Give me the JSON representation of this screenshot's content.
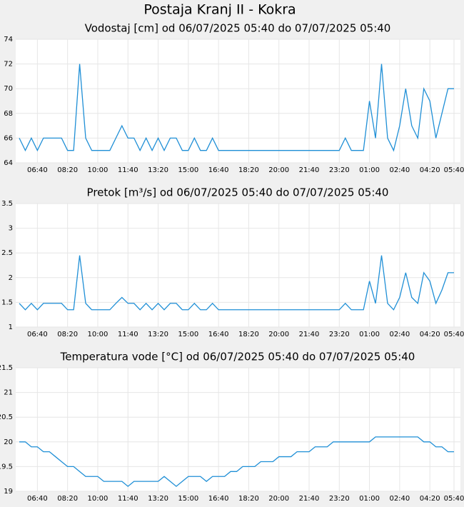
{
  "title": "Postaja Kranj II - Kokra",
  "chart_data": [
    {
      "type": "line",
      "title": "Vodostaj [cm] od 06/07/2025 05:40 do 07/07/2025 05:40",
      "x": [
        "05:40",
        "06:00",
        "06:20",
        "06:40",
        "07:00",
        "07:20",
        "07:40",
        "08:00",
        "08:20",
        "08:40",
        "09:00",
        "09:20",
        "09:40",
        "10:00",
        "10:20",
        "10:40",
        "11:00",
        "11:20",
        "11:40",
        "12:00",
        "12:20",
        "12:40",
        "13:00",
        "13:20",
        "13:40",
        "14:00",
        "14:20",
        "14:40",
        "15:00",
        "15:20",
        "15:40",
        "16:00",
        "16:20",
        "16:40",
        "17:00",
        "17:20",
        "17:40",
        "18:00",
        "18:20",
        "18:40",
        "19:00",
        "19:20",
        "19:40",
        "20:00",
        "20:20",
        "20:40",
        "21:00",
        "21:20",
        "21:40",
        "22:00",
        "22:20",
        "22:40",
        "23:00",
        "23:20",
        "23:40",
        "00:00",
        "00:20",
        "00:40",
        "01:00",
        "01:20",
        "01:40",
        "02:00",
        "02:20",
        "02:40",
        "03:00",
        "03:20",
        "03:40",
        "04:00",
        "04:20",
        "04:40",
        "05:00",
        "05:20",
        "05:40"
      ],
      "xticks": [
        "06:40",
        "08:20",
        "10:00",
        "11:40",
        "13:20",
        "15:00",
        "16:40",
        "18:20",
        "20:00",
        "21:40",
        "23:20",
        "01:00",
        "02:40",
        "04:20",
        "05:40"
      ],
      "ylim": [
        64,
        74
      ],
      "yticks": [
        64,
        66,
        68,
        70,
        72,
        74
      ],
      "grid": true,
      "series": [
        {
          "color": "#1f8fd6",
          "values": [
            66,
            65,
            66,
            65,
            66,
            66,
            66,
            66,
            65,
            65,
            72,
            66,
            65,
            65,
            65,
            65,
            66,
            67,
            66,
            66,
            65,
            66,
            65,
            66,
            65,
            66,
            66,
            65,
            65,
            66,
            65,
            65,
            66,
            65,
            65,
            65,
            65,
            65,
            65,
            65,
            65,
            65,
            65,
            65,
            65,
            65,
            65,
            65,
            65,
            65,
            65,
            65,
            65,
            65,
            66,
            65,
            65,
            65,
            69,
            66,
            72,
            66,
            65,
            67,
            70,
            67,
            66,
            70,
            69,
            66,
            68,
            70,
            70
          ]
        }
      ]
    },
    {
      "type": "line",
      "title": "Pretok [m³/s] od 06/07/2025 05:40 do 07/07/2025 05:40",
      "x": [
        "05:40",
        "06:00",
        "06:20",
        "06:40",
        "07:00",
        "07:20",
        "07:40",
        "08:00",
        "08:20",
        "08:40",
        "09:00",
        "09:20",
        "09:40",
        "10:00",
        "10:20",
        "10:40",
        "11:00",
        "11:20",
        "11:40",
        "12:00",
        "12:20",
        "12:40",
        "13:00",
        "13:20",
        "13:40",
        "14:00",
        "14:20",
        "14:40",
        "15:00",
        "15:20",
        "15:40",
        "16:00",
        "16:20",
        "16:40",
        "17:00",
        "17:20",
        "17:40",
        "18:00",
        "18:20",
        "18:40",
        "19:00",
        "19:20",
        "19:40",
        "20:00",
        "20:20",
        "20:40",
        "21:00",
        "21:20",
        "21:40",
        "22:00",
        "22:20",
        "22:40",
        "23:00",
        "23:20",
        "23:40",
        "00:00",
        "00:20",
        "00:40",
        "01:00",
        "01:20",
        "01:40",
        "02:00",
        "02:20",
        "02:40",
        "03:00",
        "03:20",
        "03:40",
        "04:00",
        "04:20",
        "04:40",
        "05:00",
        "05:20",
        "05:40"
      ],
      "xticks": [
        "06:40",
        "08:20",
        "10:00",
        "11:40",
        "13:20",
        "15:00",
        "16:40",
        "18:20",
        "20:00",
        "21:40",
        "23:20",
        "01:00",
        "02:40",
        "04:20",
        "05:40"
      ],
      "ylim": [
        1,
        3.5
      ],
      "yticks": [
        1,
        1.5,
        2,
        2.5,
        3,
        3.5
      ],
      "grid": true,
      "series": [
        {
          "color": "#1f8fd6",
          "values": [
            1.48,
            1.35,
            1.48,
            1.35,
            1.48,
            1.48,
            1.48,
            1.48,
            1.35,
            1.35,
            2.45,
            1.48,
            1.35,
            1.35,
            1.35,
            1.35,
            1.48,
            1.6,
            1.48,
            1.48,
            1.35,
            1.48,
            1.35,
            1.48,
            1.35,
            1.48,
            1.48,
            1.35,
            1.35,
            1.48,
            1.35,
            1.35,
            1.48,
            1.35,
            1.35,
            1.35,
            1.35,
            1.35,
            1.35,
            1.35,
            1.35,
            1.35,
            1.35,
            1.35,
            1.35,
            1.35,
            1.35,
            1.35,
            1.35,
            1.35,
            1.35,
            1.35,
            1.35,
            1.35,
            1.48,
            1.35,
            1.35,
            1.35,
            1.93,
            1.48,
            2.45,
            1.48,
            1.35,
            1.6,
            2.1,
            1.6,
            1.48,
            2.1,
            1.93,
            1.48,
            1.75,
            2.1,
            2.1
          ]
        }
      ]
    },
    {
      "type": "line",
      "title": "Temperatura vode [°C] od 06/07/2025 05:40 do 07/07/2025 05:40",
      "x": [
        "05:40",
        "06:00",
        "06:20",
        "06:40",
        "07:00",
        "07:20",
        "07:40",
        "08:00",
        "08:20",
        "08:40",
        "09:00",
        "09:20",
        "09:40",
        "10:00",
        "10:20",
        "10:40",
        "11:00",
        "11:20",
        "11:40",
        "12:00",
        "12:20",
        "12:40",
        "13:00",
        "13:20",
        "13:40",
        "14:00",
        "14:20",
        "14:40",
        "15:00",
        "15:20",
        "15:40",
        "16:00",
        "16:20",
        "16:40",
        "17:00",
        "17:20",
        "17:40",
        "18:00",
        "18:20",
        "18:40",
        "19:00",
        "19:20",
        "19:40",
        "20:00",
        "20:20",
        "20:40",
        "21:00",
        "21:20",
        "21:40",
        "22:00",
        "22:20",
        "22:40",
        "23:00",
        "23:20",
        "23:40",
        "00:00",
        "00:20",
        "00:40",
        "01:00",
        "01:20",
        "01:40",
        "02:00",
        "02:20",
        "02:40",
        "03:00",
        "03:20",
        "03:40",
        "04:00",
        "04:20",
        "04:40",
        "05:00",
        "05:20",
        "05:40"
      ],
      "xticks": [
        "06:40",
        "08:20",
        "10:00",
        "11:40",
        "13:20",
        "15:00",
        "16:40",
        "18:20",
        "20:00",
        "21:40",
        "23:20",
        "01:00",
        "02:40",
        "04:20",
        "05:40"
      ],
      "ylim": [
        19,
        21.5
      ],
      "yticks": [
        19,
        19.5,
        20,
        20.5,
        21,
        21.5
      ],
      "grid": true,
      "series": [
        {
          "color": "#1f8fd6",
          "values": [
            20,
            20,
            19.9,
            19.9,
            19.8,
            19.8,
            19.7,
            19.6,
            19.5,
            19.5,
            19.4,
            19.3,
            19.3,
            19.3,
            19.2,
            19.2,
            19.2,
            19.2,
            19.1,
            19.2,
            19.2,
            19.2,
            19.2,
            19.2,
            19.3,
            19.2,
            19.1,
            19.2,
            19.3,
            19.3,
            19.3,
            19.2,
            19.3,
            19.3,
            19.3,
            19.4,
            19.4,
            19.5,
            19.5,
            19.5,
            19.6,
            19.6,
            19.6,
            19.7,
            19.7,
            19.7,
            19.8,
            19.8,
            19.8,
            19.9,
            19.9,
            19.9,
            20,
            20,
            20,
            20,
            20,
            20,
            20,
            20.1,
            20.1,
            20.1,
            20.1,
            20.1,
            20.1,
            20.1,
            20.1,
            20,
            20,
            19.9,
            19.9,
            19.8,
            19.8
          ]
        }
      ]
    }
  ]
}
